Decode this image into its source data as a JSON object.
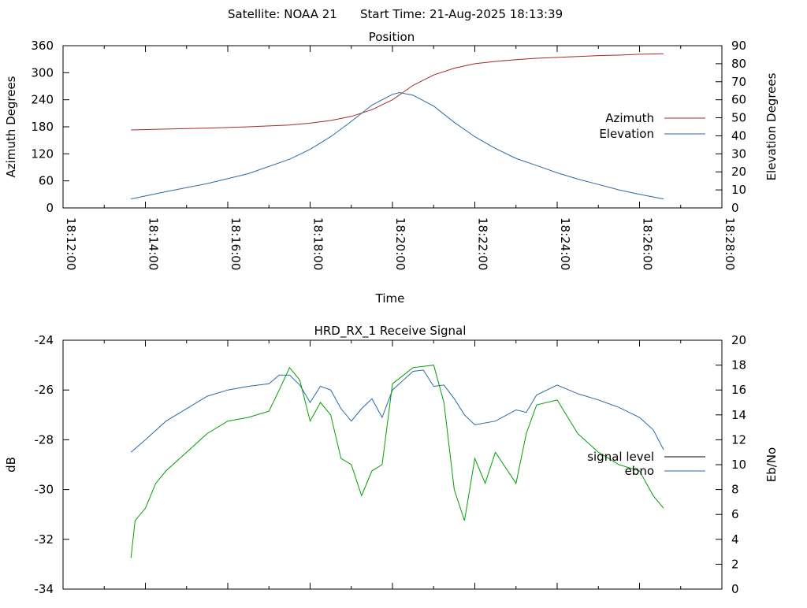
{
  "header": {
    "satellite": "Satellite: NOAA 21",
    "start_time": "Start Time: 21-Aug-2025 18:13:39"
  },
  "chart_data": [
    {
      "type": "line",
      "title": "Position",
      "xlabel": "Time",
      "ylabel": "Azimuth Degrees",
      "y2label": "Elevation Degrees",
      "xlim": [
        "18:12:00",
        "18:28:00"
      ],
      "ylim": [
        0,
        360
      ],
      "y2lim": [
        0,
        90
      ],
      "x_ticks": [
        "18:12:00",
        "18:14:00",
        "18:16:00",
        "18:18:00",
        "18:20:00",
        "18:22:00",
        "18:24:00",
        "18:26:00",
        "18:28:00"
      ],
      "y_ticks": [
        "0",
        "60",
        "120",
        "180",
        "240",
        "300",
        "360"
      ],
      "y2_ticks": [
        "0",
        "10",
        "20",
        "30",
        "40",
        "50",
        "60",
        "70",
        "80",
        "90"
      ],
      "legend_position": "right",
      "grid": false,
      "series": [
        {
          "name": "Azimuth",
          "axis": "left",
          "color": "#a5292b",
          "x": [
            "18:13:39",
            "18:14:30",
            "18:15:30",
            "18:16:30",
            "18:17:30",
            "18:18:00",
            "18:18:30",
            "18:19:00",
            "18:19:30",
            "18:20:00",
            "18:20:15",
            "18:20:30",
            "18:21:00",
            "18:21:30",
            "18:22:00",
            "18:22:30",
            "18:23:00",
            "18:23:30",
            "18:24:00",
            "18:24:30",
            "18:25:00",
            "18:25:30",
            "18:26:00",
            "18:26:35"
          ],
          "values": [
            173,
            175,
            177,
            180,
            184,
            188,
            194,
            203,
            218,
            240,
            256,
            272,
            295,
            310,
            320,
            325,
            329,
            332,
            334,
            336,
            338,
            339,
            341,
            342
          ]
        },
        {
          "name": "Elevation",
          "axis": "right",
          "color": "#2a6aa5",
          "x": [
            "18:13:39",
            "18:14:30",
            "18:15:30",
            "18:16:30",
            "18:17:30",
            "18:18:00",
            "18:18:30",
            "18:19:00",
            "18:19:30",
            "18:20:00",
            "18:20:10",
            "18:20:30",
            "18:21:00",
            "18:21:30",
            "18:22:00",
            "18:22:30",
            "18:23:00",
            "18:23:30",
            "18:24:00",
            "18:24:30",
            "18:25:00",
            "18:25:30",
            "18:26:00",
            "18:26:35"
          ],
          "values": [
            5,
            9,
            13.5,
            19,
            27,
            32.5,
            39.5,
            48,
            57,
            63,
            64,
            62.5,
            56.5,
            47.5,
            39.5,
            33,
            27.5,
            23.5,
            19.5,
            16,
            13,
            10,
            7.5,
            5
          ]
        }
      ]
    },
    {
      "type": "line",
      "title": "HRD_RX_1 Receive Signal",
      "xlabel": "",
      "ylabel": "dB",
      "y2label": "Eb/No",
      "xlim": [
        "18:12:00",
        "18:28:00"
      ],
      "ylim": [
        -34,
        -24
      ],
      "y2lim": [
        0,
        20
      ],
      "y_ticks": [
        "-34",
        "-32",
        "-30",
        "-28",
        "-26",
        "-24"
      ],
      "y2_ticks": [
        "0",
        "2",
        "4",
        "6",
        "8",
        "10",
        "12",
        "14",
        "16",
        "18",
        "20"
      ],
      "legend_position": "right",
      "grid": false,
      "series": [
        {
          "name": "signal level",
          "axis": "left",
          "color": "#000000",
          "x": [],
          "values": []
        },
        {
          "name": "ebno",
          "axis": "right",
          "color": "#2a6aa5",
          "x": [
            "18:13:39",
            "18:14:00",
            "18:14:30",
            "18:15:00",
            "18:15:30",
            "18:16:00",
            "18:16:30",
            "18:17:00",
            "18:17:15",
            "18:17:30",
            "18:17:45",
            "18:18:00",
            "18:18:15",
            "18:18:30",
            "18:18:45",
            "18:19:00",
            "18:19:15",
            "18:19:30",
            "18:19:45",
            "18:20:00",
            "18:20:30",
            "18:20:45",
            "18:21:00",
            "18:21:15",
            "18:21:30",
            "18:21:45",
            "18:22:00",
            "18:22:30",
            "18:23:00",
            "18:23:15",
            "18:23:30",
            "18:24:00",
            "18:24:30",
            "18:25:00",
            "18:25:30",
            "18:26:00",
            "18:26:20",
            "18:26:35"
          ],
          "values": [
            11,
            12,
            13.5,
            14.5,
            15.5,
            16,
            16.3,
            16.5,
            17.2,
            17.2,
            16.4,
            15,
            16.3,
            16,
            14.5,
            13.5,
            14.5,
            15.3,
            13.8,
            16,
            17.5,
            17.6,
            16.3,
            16.4,
            15.3,
            14,
            13.2,
            13.5,
            14.4,
            14.2,
            15.6,
            16.4,
            15.7,
            15.2,
            14.6,
            13.8,
            12.8,
            11.2
          ]
        },
        {
          "name": "",
          "axis": "right",
          "color": "#00a000",
          "x": [
            "18:13:39",
            "18:13:45",
            "18:14:00",
            "18:14:15",
            "18:14:30",
            "18:15:00",
            "18:15:30",
            "18:16:00",
            "18:16:30",
            "18:17:00",
            "18:17:15",
            "18:17:30",
            "18:17:45",
            "18:18:00",
            "18:18:15",
            "18:18:30",
            "18:18:45",
            "18:19:00",
            "18:19:15",
            "18:19:30",
            "18:19:45",
            "18:20:00",
            "18:20:30",
            "18:21:00",
            "18:21:15",
            "18:21:30",
            "18:21:45",
            "18:22:00",
            "18:22:15",
            "18:22:30",
            "18:23:00",
            "18:23:15",
            "18:23:30",
            "18:24:00",
            "18:24:30",
            "18:25:00",
            "18:25:30",
            "18:26:00",
            "18:26:20",
            "18:26:35"
          ],
          "values": [
            2.5,
            5.5,
            6.5,
            8.5,
            9.5,
            11,
            12.5,
            13.5,
            13.8,
            14.3,
            16,
            17.8,
            16.8,
            13.5,
            15,
            14,
            10.5,
            10,
            7.5,
            9.5,
            10,
            16.5,
            17.8,
            18,
            15,
            8,
            5.5,
            10.5,
            8.5,
            11,
            8.5,
            12.5,
            14.8,
            15.2,
            12.5,
            11,
            10,
            9.5,
            7.5,
            6.5
          ]
        }
      ]
    }
  ]
}
